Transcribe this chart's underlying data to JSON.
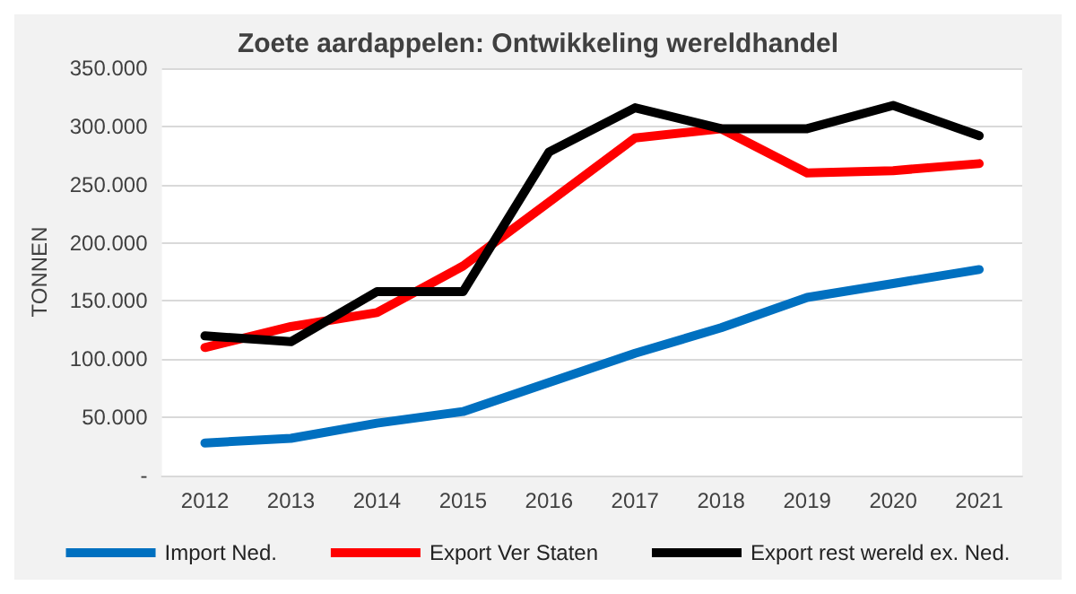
{
  "chart_data": {
    "type": "line",
    "title": "Zoete aardappelen: Ontwikkeling wereldhandel",
    "ylabel": "TONNEN",
    "categories": [
      "2012",
      "2013",
      "2014",
      "2015",
      "2016",
      "2017",
      "2018",
      "2019",
      "2020",
      "2021"
    ],
    "series": [
      {
        "name": "Import Ned.",
        "color": "#0070c0",
        "values": [
          28000,
          32000,
          45000,
          55000,
          80000,
          105000,
          127000,
          153000,
          165000,
          177000
        ]
      },
      {
        "name": "Export Ver Staten",
        "color": "#ff0000",
        "values": [
          110000,
          128000,
          140000,
          180000,
          235000,
          290000,
          298000,
          260000,
          262000,
          268000
        ]
      },
      {
        "name": "Export rest wereld ex. Ned.",
        "color": "#000000",
        "values": [
          120000,
          115000,
          158000,
          158000,
          278000,
          316000,
          298000,
          298000,
          318000,
          292000
        ]
      }
    ],
    "ylim": [
      0,
      350000
    ],
    "yticks": [
      {
        "value": 0,
        "label": "-"
      },
      {
        "value": 50000,
        "label": "50.000"
      },
      {
        "value": 100000,
        "label": "100.000"
      },
      {
        "value": 150000,
        "label": "150.000"
      },
      {
        "value": 200000,
        "label": "200.000"
      },
      {
        "value": 250000,
        "label": "250.000"
      },
      {
        "value": 300000,
        "label": "300.000"
      },
      {
        "value": 350000,
        "label": "350.000"
      }
    ],
    "grid": "y",
    "legend": "bottom",
    "marker": "none",
    "line_style": "solid"
  }
}
